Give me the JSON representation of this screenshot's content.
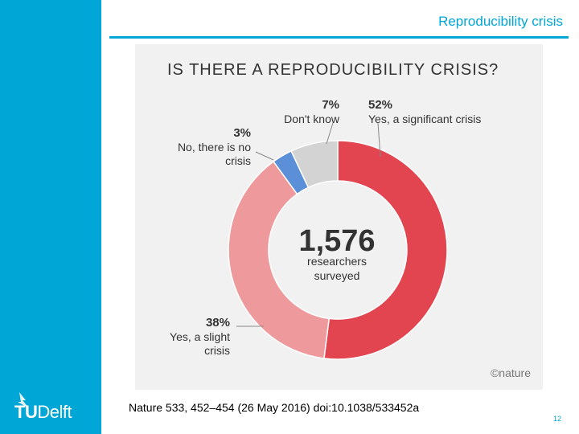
{
  "slide": {
    "title": "Reproducibility crisis",
    "citation": "Nature 533, 452–454 (26 May 2016) doi:10.1038/533452a",
    "page_number": "12",
    "logo_text_bold": "TU",
    "logo_text_light": "Delft",
    "sidebar_color": "#00a6d6"
  },
  "chart_data": {
    "type": "pie",
    "variant": "donut",
    "title": "IS THERE A REPRODUCIBILITY CRISIS?",
    "center_value": "1,576",
    "center_label_line1": "researchers",
    "center_label_line2": "surveyed",
    "credit": "©nature",
    "slices": [
      {
        "name": "Yes, a significant crisis",
        "value": 52,
        "label_pct": "52%",
        "label_lines": [
          "Yes, a significant crisis"
        ],
        "color": "#e2454f"
      },
      {
        "name": "Yes, a slight crisis",
        "value": 38,
        "label_pct": "38%",
        "label_lines": [
          "Yes, a slight",
          "crisis"
        ],
        "color": "#ee9a9c"
      },
      {
        "name": "No, there is no crisis",
        "value": 3,
        "label_pct": "3%",
        "label_lines": [
          "No, there is no",
          "crisis"
        ],
        "color": "#5b8fd8"
      },
      {
        "name": "Don't know",
        "value": 7,
        "label_pct": "7%",
        "label_lines": [
          "Don't know"
        ],
        "color": "#d3d3d3"
      }
    ]
  }
}
